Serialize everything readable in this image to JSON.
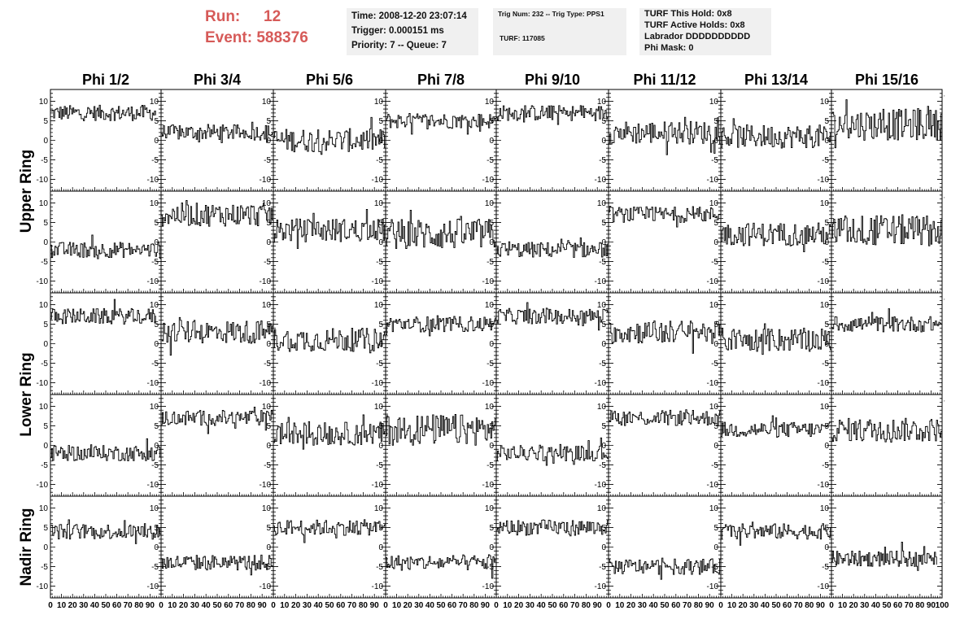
{
  "header": {
    "run_label": "Run:",
    "run_value": "12",
    "event_label": "Event:",
    "event_value": "588376",
    "info1": [
      "Time: 2008-12-20 23:07:14",
      "Trigger: 0.000151 ms",
      "Priority: 7 -- Queue: 7"
    ],
    "info2": [
      "Trig Num: 232 -- Trig Type: PPS1",
      "TURF: 117085"
    ],
    "info3": [
      "TURF This Hold: 0x8",
      "TURF Active Holds: 0x8",
      "Labrador DDDDDDDDDD",
      "Phi Mask: 0"
    ]
  },
  "colors": {
    "title": "#d65a58",
    "box": "#f0f0f0",
    "trace": "#000000"
  },
  "chart_data": {
    "type": "line",
    "columns": [
      "Phi 1/2",
      "Phi 3/4",
      "Phi 5/6",
      "Phi 7/8",
      "Phi 9/10",
      "Phi 11/12",
      "Phi 13/14",
      "Phi 15/16"
    ],
    "rings": [
      "Upper Ring",
      "Lower Ring",
      "Nadir Ring"
    ],
    "ring_row_span": [
      2,
      2,
      1
    ],
    "xlim": [
      0,
      100
    ],
    "ylim": [
      -13,
      13
    ],
    "x_ticks": [
      "0",
      "10",
      "20",
      "30",
      "40",
      "50",
      "60",
      "70",
      "80",
      "90",
      "100"
    ],
    "y_ticks": [
      "10",
      "5",
      "0",
      "-5",
      "-10"
    ],
    "samples_per_trace": 100,
    "baselines": [
      [
        7,
        2,
        0,
        5,
        7,
        2,
        1,
        4
      ],
      [
        -2,
        7,
        3,
        2,
        -2,
        7,
        2,
        3
      ],
      [
        7,
        3,
        1,
        5,
        7,
        3,
        1,
        5
      ],
      [
        -2,
        7,
        3,
        4,
        -2,
        7,
        4,
        4
      ],
      [
        4,
        -4,
        5,
        -4,
        5,
        -5,
        4,
        -3
      ]
    ],
    "noise_amplitude": [
      [
        2,
        2,
        3,
        2,
        2,
        3,
        3,
        4
      ],
      [
        2,
        3,
        3,
        4,
        2,
        2,
        3,
        4
      ],
      [
        2,
        3,
        3,
        2,
        2,
        3,
        3,
        2
      ],
      [
        2,
        2,
        3,
        4,
        2,
        2,
        2,
        3
      ],
      [
        2,
        2,
        2,
        2,
        2,
        2,
        2,
        2
      ]
    ],
    "trace_end_x": [
      [
        95,
        100,
        100,
        100,
        100,
        100,
        100,
        100
      ],
      [
        100,
        100,
        100,
        100,
        100,
        100,
        100,
        100
      ],
      [
        95,
        100,
        100,
        100,
        100,
        100,
        100,
        100
      ],
      [
        100,
        100,
        100,
        100,
        100,
        100,
        100,
        100
      ],
      [
        100,
        100,
        100,
        100,
        100,
        100,
        100,
        95
      ]
    ]
  }
}
